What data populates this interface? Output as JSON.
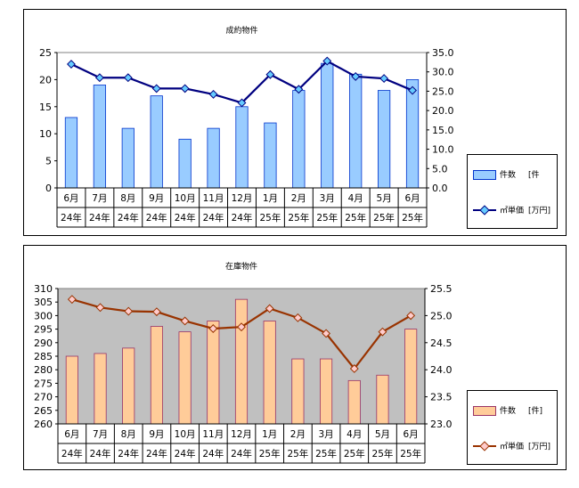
{
  "chart_data": [
    {
      "type": "bar+line",
      "title": "成約物件",
      "categories": [
        {
          "month": "6月",
          "year": "24年"
        },
        {
          "month": "7月",
          "year": "24年"
        },
        {
          "month": "8月",
          "year": "24年"
        },
        {
          "month": "9月",
          "year": "24年"
        },
        {
          "month": "10月",
          "year": "24年"
        },
        {
          "month": "11月",
          "year": "24年"
        },
        {
          "month": "12月",
          "year": "24年"
        },
        {
          "month": "1月",
          "year": "25年"
        },
        {
          "month": "2月",
          "year": "25年"
        },
        {
          "month": "3月",
          "year": "25年"
        },
        {
          "month": "4月",
          "year": "25年"
        },
        {
          "month": "5月",
          "year": "25年"
        },
        {
          "month": "6月",
          "year": "25年"
        }
      ],
      "series": [
        {
          "name": "件数",
          "unit": "[件",
          "kind": "bar",
          "axis": "left",
          "values": [
            13,
            19,
            11,
            17,
            9,
            11,
            15,
            12,
            18,
            23,
            21,
            18,
            20
          ]
        },
        {
          "name": "㎡単価",
          "unit": "[万円]",
          "kind": "line",
          "axis": "right",
          "values": [
            32.0,
            28.5,
            28.5,
            25.7,
            25.7,
            24.2,
            22.0,
            29.3,
            25.5,
            32.8,
            28.8,
            28.3,
            25.2
          ]
        }
      ],
      "left_axis": {
        "min": 0,
        "max": 25,
        "step": 5,
        "ticks": [
          "0",
          "5",
          "10",
          "15",
          "20",
          "25"
        ]
      },
      "right_axis": {
        "min": 0,
        "max": 35,
        "step": 5,
        "ticks": [
          "0.0",
          "5.0",
          "10.0",
          "15.0",
          "20.0",
          "25.0",
          "30.0",
          "35.0"
        ]
      },
      "colors": {
        "bar_fill": "#99ccff",
        "bar_stroke": "#0033cc",
        "line": "#000080",
        "marker_fill": "#66ccff",
        "plot_bg": "#ffffff"
      },
      "legend_position": "right"
    },
    {
      "type": "bar+line",
      "title": "在庫物件",
      "categories": [
        {
          "month": "6月",
          "year": "24年"
        },
        {
          "month": "7月",
          "year": "24年"
        },
        {
          "month": "8月",
          "year": "24年"
        },
        {
          "month": "9月",
          "year": "24年"
        },
        {
          "month": "10月",
          "year": "24年"
        },
        {
          "month": "11月",
          "year": "24年"
        },
        {
          "month": "12月",
          "year": "24年"
        },
        {
          "month": "1月",
          "year": "25年"
        },
        {
          "month": "2月",
          "year": "25年"
        },
        {
          "month": "3月",
          "year": "25年"
        },
        {
          "month": "4月",
          "year": "25年"
        },
        {
          "month": "5月",
          "year": "25年"
        },
        {
          "month": "6月",
          "year": "25年"
        }
      ],
      "series": [
        {
          "name": "件数",
          "unit": "[件]",
          "kind": "bar",
          "axis": "left",
          "values": [
            285,
            286,
            288,
            296,
            294,
            298,
            306,
            298,
            284,
            284,
            276,
            278,
            295
          ]
        },
        {
          "name": "㎡単価",
          "unit": "[万円]",
          "kind": "line",
          "axis": "right",
          "values": [
            25.3,
            25.15,
            25.08,
            25.07,
            24.9,
            24.76,
            24.79,
            25.13,
            24.96,
            24.67,
            24.02,
            24.7,
            25.0
          ]
        }
      ],
      "left_axis": {
        "min": 260,
        "max": 310,
        "step": 5,
        "ticks": [
          "260",
          "265",
          "270",
          "275",
          "280",
          "285",
          "290",
          "295",
          "300",
          "305",
          "310"
        ]
      },
      "right_axis": {
        "min": 23.0,
        "max": 25.5,
        "step": 0.5,
        "ticks": [
          "23.0",
          "23.5",
          "24.0",
          "24.5",
          "25.0",
          "25.5"
        ]
      },
      "colors": {
        "bar_fill": "#ffcc99",
        "bar_stroke": "#993366",
        "line": "#993300",
        "marker_fill": "#ffcccc",
        "plot_bg": "#c0c0c0"
      },
      "legend_position": "right"
    }
  ]
}
